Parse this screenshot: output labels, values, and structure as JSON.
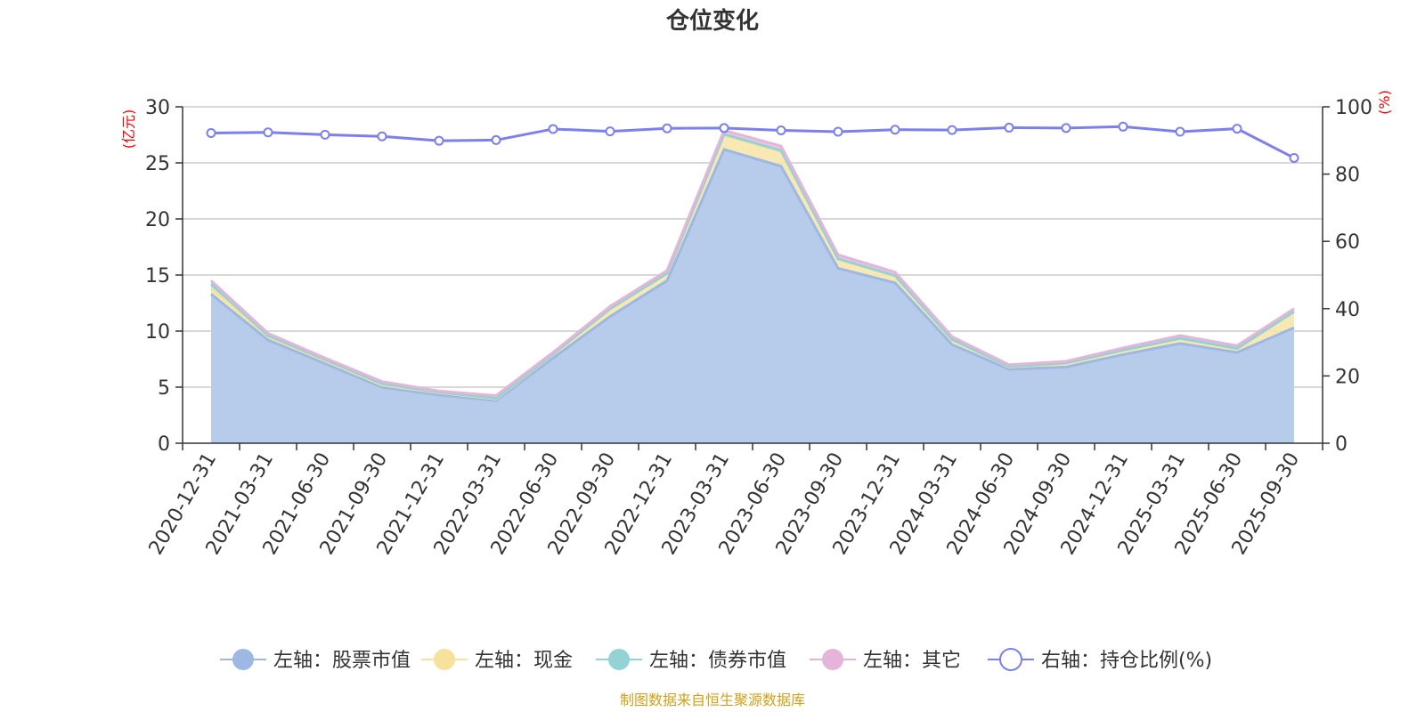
{
  "chart_data": {
    "type": "area",
    "title": "仓位变化",
    "left_unit": "(亿元)",
    "right_unit": "(%)",
    "categories": [
      "2020-12-31",
      "2021-03-31",
      "2021-06-30",
      "2021-09-30",
      "2021-12-31",
      "2022-03-31",
      "2022-06-30",
      "2022-09-30",
      "2022-12-31",
      "2023-03-31",
      "2023-06-30",
      "2023-09-30",
      "2023-12-31",
      "2024-03-31",
      "2024-06-30",
      "2024-09-30",
      "2024-12-31",
      "2025-03-31",
      "2025-06-30",
      "2025-09-30"
    ],
    "left_axis": {
      "min": 0,
      "max": 30,
      "ticks": [
        "0",
        "5",
        "10",
        "15",
        "20",
        "25",
        "30"
      ]
    },
    "right_axis": {
      "min": 0,
      "max": 100,
      "ticks": [
        "0",
        "20",
        "40",
        "60",
        "80",
        "100"
      ]
    },
    "grid": true,
    "legend_position": "bottom",
    "series": [
      {
        "name": "左轴：股票市值",
        "axis": "left",
        "stack": true,
        "color": "#9db8e3",
        "fill": "#b7cbea",
        "values": [
          13.3,
          9.2,
          7.1,
          5.0,
          4.3,
          3.8,
          7.6,
          11.3,
          14.5,
          26.2,
          24.7,
          15.6,
          14.3,
          8.8,
          6.6,
          6.8,
          7.9,
          8.9,
          8.1,
          10.3
        ]
      },
      {
        "name": "左轴：现金",
        "axis": "left",
        "stack": true,
        "color": "#f7e29c",
        "fill": "#f7e6ac",
        "values": [
          0.5,
          0.3,
          0.25,
          0.2,
          0.2,
          0.15,
          0.3,
          0.6,
          0.6,
          1.3,
          1.3,
          0.8,
          0.6,
          0.4,
          0.2,
          0.3,
          0.35,
          0.4,
          0.3,
          1.4
        ]
      },
      {
        "name": "左轴：债券市值",
        "axis": "left",
        "stack": true,
        "color": "#93d3d6",
        "fill": "#a7dbdd",
        "values": [
          0.4,
          0.1,
          0.1,
          0.1,
          0.05,
          0.05,
          0.05,
          0.1,
          0.05,
          0.05,
          0.1,
          0.05,
          0.05,
          0.05,
          0.05,
          0.05,
          0.05,
          0.05,
          0.05,
          0.05
        ]
      },
      {
        "name": "左轴：其它",
        "axis": "left",
        "stack": true,
        "color": "#e5b4da",
        "fill": "#ebc2e2",
        "values": [
          0.3,
          0.2,
          0.15,
          0.2,
          0.1,
          0.25,
          0.15,
          0.2,
          0.25,
          0.35,
          0.4,
          0.35,
          0.3,
          0.25,
          0.15,
          0.15,
          0.2,
          0.25,
          0.25,
          0.25
        ]
      },
      {
        "name": "右轴：持仓比例(%)",
        "axis": "right",
        "type": "line",
        "color": "#7b7ff0",
        "values": [
          92.2,
          92.4,
          91.7,
          91.2,
          89.9,
          90.1,
          93.4,
          92.7,
          93.6,
          93.7,
          93.0,
          92.6,
          93.2,
          93.1,
          93.8,
          93.7,
          94.1,
          92.6,
          93.5,
          84.8
        ]
      }
    ]
  },
  "source_note": "制图数据来自恒生聚源数据库"
}
